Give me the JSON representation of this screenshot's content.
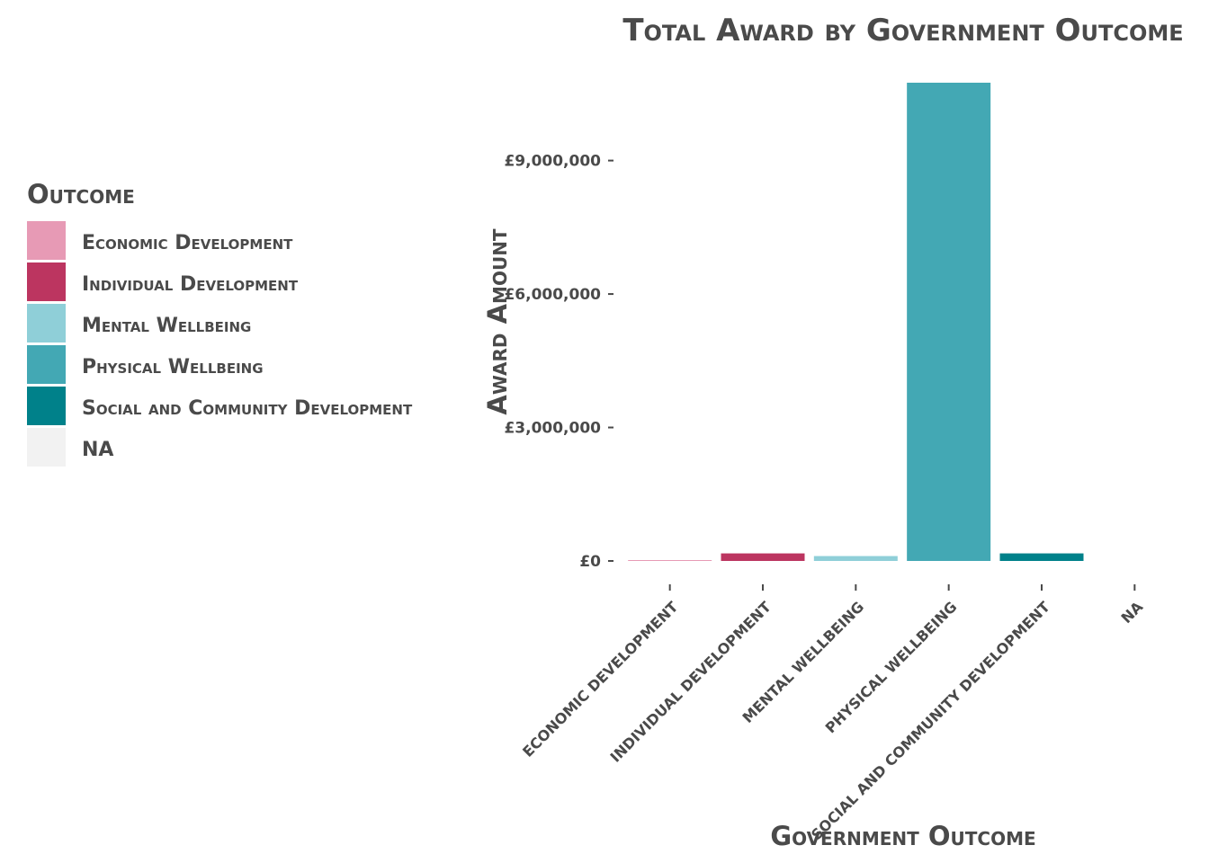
{
  "chart_data": {
    "type": "bar",
    "title": "Total Award by Government Outcome",
    "xlabel": "Government Outcome",
    "ylabel": "Award Amount",
    "categories": [
      "Economic Development",
      "Individual Development",
      "Mental Wellbeing",
      "Physical Wellbeing",
      "Social and Community Development",
      "NA"
    ],
    "values": [
      20000,
      170000,
      110000,
      10750000,
      170000,
      0
    ],
    "colors": [
      "#e79ab5",
      "#bc3560",
      "#8fcfd8",
      "#43a8b4",
      "#00818a",
      "#f2f2f2"
    ],
    "ylim": [
      0,
      10750000
    ],
    "yticks": [
      0,
      3000000,
      6000000,
      9000000
    ],
    "ytick_labels": [
      "£0",
      "£3,000,000",
      "£6,000,000",
      "£9,000,000"
    ],
    "grid": false,
    "legend": {
      "title": "Outcome",
      "position": "left",
      "entries": [
        "Economic Development",
        "Individual Development",
        "Mental Wellbeing",
        "Physical Wellbeing",
        "Social and Community Development",
        "NA"
      ]
    }
  }
}
